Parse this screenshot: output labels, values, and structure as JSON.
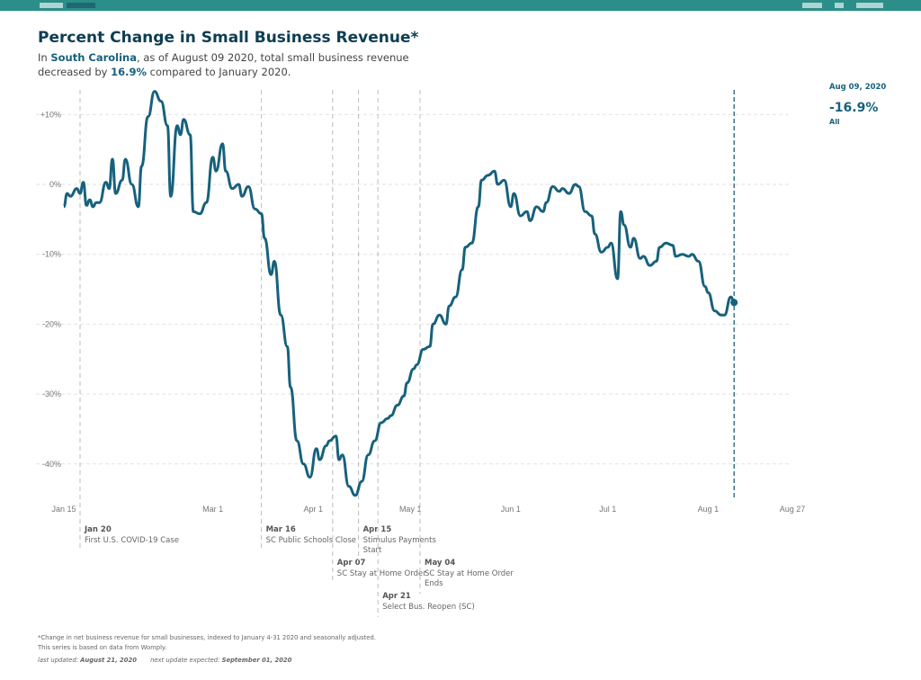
{
  "colors": {
    "header": "#2b8e89",
    "line": "#17617d",
    "title": "#0d3d52"
  },
  "header": {
    "title": "Percent Change in Small Business Revenue*",
    "sub_pre": "In ",
    "state": "South Carolina",
    "sub_mid": ", as of August 09 2020, total small business revenue decreased by ",
    "pct": "16.9%",
    "sub_post": " compared to January 2020."
  },
  "readout": {
    "date": "Aug 09, 2020",
    "value": "-16.9%",
    "series": "All"
  },
  "footer": {
    "note": "*Change in net business revenue for small businesses, indexed to January 4-31 2020 and seasonally adjusted. This series is based on data from Womply.",
    "last_label": "last updated: ",
    "last": "August 21, 2020",
    "next_label": "next update expected: ",
    "next": "September 01, 2020"
  },
  "chart_data": {
    "type": "line",
    "xlim": [
      "2020-01-15",
      "2020-08-27"
    ],
    "ylim": [
      -46,
      13
    ],
    "x_ticks": [
      [
        "2020-01-15",
        "Jan 15"
      ],
      [
        "2020-03-01",
        "Mar 1"
      ],
      [
        "2020-04-01",
        "Apr 1"
      ],
      [
        "2020-05-01",
        "May 1"
      ],
      [
        "2020-06-01",
        "Jun 1"
      ],
      [
        "2020-07-01",
        "Jul 1"
      ],
      [
        "2020-08-01",
        "Aug 1"
      ],
      [
        "2020-08-27",
        "Aug 27"
      ]
    ],
    "y_ticks": [
      [
        10,
        "+10%"
      ],
      [
        0,
        "0%"
      ],
      [
        -10,
        "-10%"
      ],
      [
        -20,
        "-20%"
      ],
      [
        -30,
        "-30%"
      ],
      [
        -40,
        "-40%"
      ]
    ],
    "grid": true,
    "events": [
      {
        "date": "2020-01-20",
        "label": "Jan 20",
        "text": [
          "First U.S. COVID-19 Case"
        ],
        "row": 0
      },
      {
        "date": "2020-03-16",
        "label": "Mar 16",
        "text": [
          "SC Public Schools Close"
        ],
        "row": 0
      },
      {
        "date": "2020-04-07",
        "label": "Apr 07",
        "text": [
          "SC Stay at Home Order"
        ],
        "row": 1
      },
      {
        "date": "2020-04-15",
        "label": "Apr 15",
        "text": [
          "Stimulus Payments",
          "Start"
        ],
        "row": 0
      },
      {
        "date": "2020-04-21",
        "label": "Apr 21",
        "text": [
          "Select Bus. Reopen (SC)"
        ],
        "row": 2
      },
      {
        "date": "2020-05-04",
        "label": "May 04",
        "text": [
          "SC Stay at Home Order",
          "Ends"
        ],
        "row": 1
      }
    ],
    "series": [
      {
        "values": [
          [
            "2020-01-15",
            -3.2
          ],
          [
            "2020-01-16",
            -1.3
          ],
          [
            "2020-01-17",
            -1.7
          ],
          [
            "2020-01-19",
            -0.6
          ],
          [
            "2020-01-20",
            -1.3
          ],
          [
            "2020-01-21",
            0.3
          ],
          [
            "2020-01-22",
            -3
          ],
          [
            "2020-01-23",
            -2.2
          ],
          [
            "2020-01-24",
            -3.2
          ],
          [
            "2020-01-25",
            -2.6
          ],
          [
            "2020-01-26",
            -2.6
          ],
          [
            "2020-01-28",
            0.3
          ],
          [
            "2020-01-29",
            -0.6
          ],
          [
            "2020-01-30",
            3.6
          ],
          [
            "2020-01-31",
            -1.3
          ],
          [
            "2020-02-02",
            0.6
          ],
          [
            "2020-02-03",
            3.6
          ],
          [
            "2020-02-05",
            0
          ],
          [
            "2020-02-07",
            -3.2
          ],
          [
            "2020-02-08",
            2.6
          ],
          [
            "2020-02-10",
            9.7
          ],
          [
            "2020-02-12",
            13.3
          ],
          [
            "2020-02-14",
            11.9
          ],
          [
            "2020-02-16",
            8.4
          ],
          [
            "2020-02-17",
            -1.7
          ],
          [
            "2020-02-19",
            8.4
          ],
          [
            "2020-02-20",
            7.1
          ],
          [
            "2020-02-21",
            9.3
          ],
          [
            "2020-02-23",
            7.1
          ],
          [
            "2020-02-24",
            -3.9
          ],
          [
            "2020-02-26",
            -4.2
          ],
          [
            "2020-02-28",
            -2.6
          ],
          [
            "2020-03-01",
            3.9
          ],
          [
            "2020-03-02",
            1.9
          ],
          [
            "2020-03-04",
            5.8
          ],
          [
            "2020-03-05",
            1.9
          ],
          [
            "2020-03-07",
            -0.6
          ],
          [
            "2020-03-09",
            0
          ],
          [
            "2020-03-10",
            -1.7
          ],
          [
            "2020-03-12",
            -0.3
          ],
          [
            "2020-03-14",
            -3.5
          ],
          [
            "2020-03-16",
            -4.2
          ],
          [
            "2020-03-17",
            -7.7
          ],
          [
            "2020-03-19",
            -12.9
          ],
          [
            "2020-03-20",
            -11
          ],
          [
            "2020-03-22",
            -18.7
          ],
          [
            "2020-03-24",
            -23.2
          ],
          [
            "2020-03-25",
            -29
          ],
          [
            "2020-03-27",
            -36.7
          ],
          [
            "2020-03-29",
            -40
          ],
          [
            "2020-03-31",
            -41.9
          ],
          [
            "2020-04-02",
            -37.8
          ],
          [
            "2020-04-03",
            -39.4
          ],
          [
            "2020-04-05",
            -37.4
          ],
          [
            "2020-04-06",
            -36.7
          ],
          [
            "2020-04-08",
            -36
          ],
          [
            "2020-04-09",
            -39.4
          ],
          [
            "2020-04-10",
            -38.7
          ],
          [
            "2020-04-12",
            -43.2
          ],
          [
            "2020-04-14",
            -44.5
          ],
          [
            "2020-04-16",
            -42.5
          ],
          [
            "2020-04-18",
            -38.7
          ],
          [
            "2020-04-20",
            -36.7
          ],
          [
            "2020-04-22",
            -34.1
          ],
          [
            "2020-04-24",
            -33.5
          ],
          [
            "2020-04-25",
            -33.1
          ],
          [
            "2020-04-27",
            -31.6
          ],
          [
            "2020-04-29",
            -30.3
          ],
          [
            "2020-04-30",
            -28.4
          ],
          [
            "2020-05-02",
            -26.4
          ],
          [
            "2020-05-03",
            -25.8
          ],
          [
            "2020-05-05",
            -23.6
          ],
          [
            "2020-05-07",
            -23.2
          ],
          [
            "2020-05-08",
            -20
          ],
          [
            "2020-05-10",
            -18.7
          ],
          [
            "2020-05-12",
            -20
          ],
          [
            "2020-05-13",
            -17.4
          ],
          [
            "2020-05-15",
            -16.1
          ],
          [
            "2020-05-17",
            -12.2
          ],
          [
            "2020-05-18",
            -9
          ],
          [
            "2020-05-20",
            -8.4
          ],
          [
            "2020-05-22",
            -3.2
          ],
          [
            "2020-05-23",
            0.6
          ],
          [
            "2020-05-25",
            1.3
          ],
          [
            "2020-05-27",
            1.9
          ],
          [
            "2020-05-28",
            0
          ],
          [
            "2020-05-30",
            0.6
          ],
          [
            "2020-06-01",
            -3.2
          ],
          [
            "2020-06-02",
            -1.3
          ],
          [
            "2020-06-04",
            -4.5
          ],
          [
            "2020-06-06",
            -3.9
          ],
          [
            "2020-06-07",
            -5.2
          ],
          [
            "2020-06-09",
            -3.2
          ],
          [
            "2020-06-11",
            -3.9
          ],
          [
            "2020-06-12",
            -2.6
          ],
          [
            "2020-06-14",
            -0.3
          ],
          [
            "2020-06-16",
            -1
          ],
          [
            "2020-06-17",
            -0.6
          ],
          [
            "2020-06-19",
            -1.3
          ],
          [
            "2020-06-21",
            0
          ],
          [
            "2020-06-22",
            -0.3
          ],
          [
            "2020-06-24",
            -3.9
          ],
          [
            "2020-06-26",
            -4.5
          ],
          [
            "2020-06-27",
            -7.1
          ],
          [
            "2020-06-29",
            -9.7
          ],
          [
            "2020-07-01",
            -9
          ],
          [
            "2020-07-02",
            -8.4
          ],
          [
            "2020-07-04",
            -13.5
          ],
          [
            "2020-07-05",
            -3.9
          ],
          [
            "2020-07-06",
            -5.8
          ],
          [
            "2020-07-08",
            -9
          ],
          [
            "2020-07-09",
            -7.7
          ],
          [
            "2020-07-11",
            -10.6
          ],
          [
            "2020-07-12",
            -10.3
          ],
          [
            "2020-07-14",
            -11.6
          ],
          [
            "2020-07-16",
            -11
          ],
          [
            "2020-07-17",
            -9
          ],
          [
            "2020-07-19",
            -8.4
          ],
          [
            "2020-07-21",
            -8.7
          ],
          [
            "2020-07-22",
            -10.3
          ],
          [
            "2020-07-24",
            -10
          ],
          [
            "2020-07-26",
            -10.3
          ],
          [
            "2020-07-27",
            -10
          ],
          [
            "2020-07-29",
            -11
          ],
          [
            "2020-07-31",
            -14.6
          ],
          [
            "2020-08-01",
            -15.5
          ],
          [
            "2020-08-03",
            -18.1
          ],
          [
            "2020-08-05",
            -18.7
          ],
          [
            "2020-08-06",
            -18.7
          ],
          [
            "2020-08-08",
            -16.1
          ],
          [
            "2020-08-09",
            -16.9
          ]
        ]
      }
    ]
  }
}
